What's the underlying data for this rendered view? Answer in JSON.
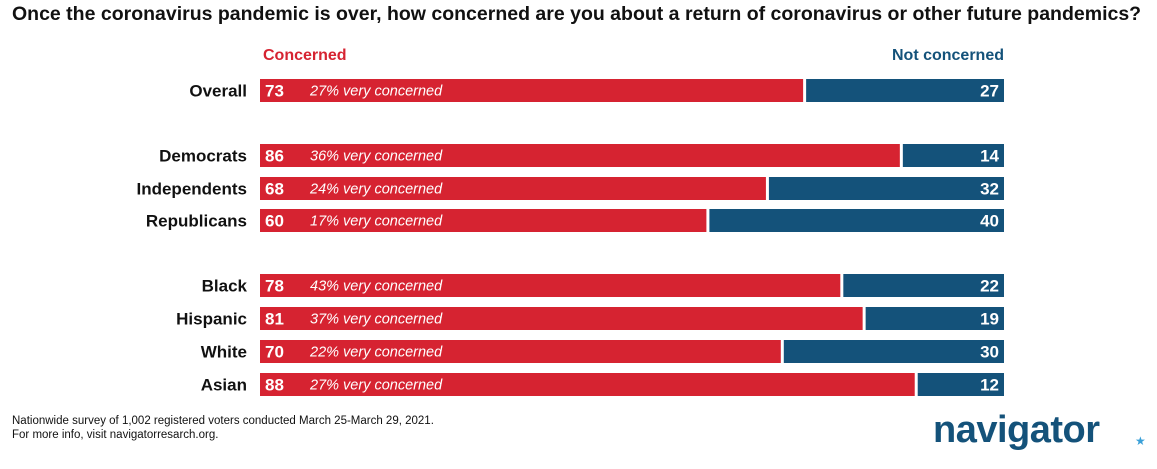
{
  "title": "Once the coronavirus pandemic is over, how concerned are you about a return of coronavirus or other future pandemics?",
  "legend": {
    "concerned": "Concerned",
    "not_concerned": "Not concerned"
  },
  "colors": {
    "concerned": "#d62331",
    "not_concerned": "#14527a",
    "text": "#111111"
  },
  "footnote": [
    "Nationwide survey of 1,002 registered voters conducted March 25-March 29, 2021.",
    "For more info, visit navigatorresarch.org."
  ],
  "logo": {
    "text": "navigator",
    "star": "★"
  },
  "chart_data": {
    "type": "bar",
    "orientation": "horizontal",
    "stacked": true,
    "title": "Once the coronavirus pandemic is over, how concerned are you about a return of coronavirus or other future pandemics?",
    "categories": [
      "Overall",
      "Democrats",
      "Independents",
      "Republicans",
      "Black",
      "Hispanic",
      "White",
      "Asian"
    ],
    "groups": [
      [
        "Overall"
      ],
      [
        "Democrats",
        "Independents",
        "Republicans"
      ],
      [
        "Black",
        "Hispanic",
        "White",
        "Asian"
      ]
    ],
    "series": [
      {
        "name": "Concerned",
        "values": [
          73,
          86,
          68,
          60,
          78,
          81,
          70,
          88
        ]
      },
      {
        "name": "Not concerned",
        "values": [
          27,
          14,
          32,
          40,
          22,
          19,
          30,
          12
        ]
      }
    ],
    "annotations": [
      "27% very concerned",
      "36% very concerned",
      "24% very concerned",
      "17% very concerned",
      "43% very concerned",
      "37% very concerned",
      "22% very concerned",
      "27% very concerned"
    ],
    "xlim": [
      0,
      100
    ],
    "legend_position": "top"
  }
}
